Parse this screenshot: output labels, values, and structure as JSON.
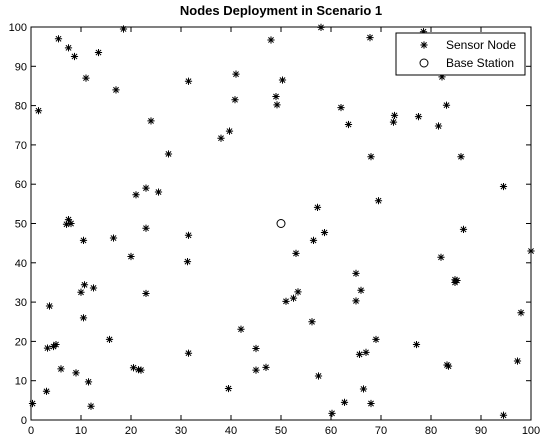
{
  "chart_data": {
    "type": "scatter",
    "title": "Nodes Deployment in Scenario 1",
    "xlabel": "",
    "ylabel": "",
    "xlim": [
      0,
      100
    ],
    "ylim": [
      0,
      100
    ],
    "x_ticks": [
      "0",
      "10",
      "20",
      "30",
      "40",
      "50",
      "60",
      "70",
      "80",
      "90",
      "100"
    ],
    "y_ticks": [
      "0",
      "10",
      "20",
      "30",
      "40",
      "50",
      "60",
      "70",
      "80",
      "90",
      "100"
    ],
    "grid": false,
    "legend_position": "top-right",
    "series": [
      {
        "name": "Sensor Node",
        "marker": "asterisk",
        "color": "#000000",
        "points": [
          [
            5.5,
            97
          ],
          [
            7.5,
            94.7
          ],
          [
            8.7,
            92.5
          ],
          [
            13.5,
            93.5
          ],
          [
            18.5,
            99.5
          ],
          [
            11,
            87
          ],
          [
            17,
            84
          ],
          [
            1.5,
            78.7
          ],
          [
            31.5,
            86.2
          ],
          [
            41,
            88
          ],
          [
            40.8,
            81.5
          ],
          [
            24,
            76.1
          ],
          [
            48,
            96.7
          ],
          [
            58,
            99.9
          ],
          [
            67.8,
            97.3
          ],
          [
            78.5,
            98.8
          ],
          [
            49,
            82.3
          ],
          [
            49.2,
            80.2
          ],
          [
            50.3,
            86.5
          ],
          [
            62,
            79.5
          ],
          [
            63.5,
            75.2
          ],
          [
            38,
            71.7
          ],
          [
            39.7,
            73.5
          ],
          [
            27.5,
            67.7
          ],
          [
            77.5,
            77.2
          ],
          [
            72.5,
            75.8
          ],
          [
            72.7,
            77.5
          ],
          [
            81.5,
            74.8
          ],
          [
            82.2,
            87.3
          ],
          [
            83.1,
            80.1
          ],
          [
            68,
            67
          ],
          [
            86,
            67
          ],
          [
            69.5,
            55.8
          ],
          [
            94.5,
            59.4
          ],
          [
            23,
            59
          ],
          [
            21,
            57.3
          ],
          [
            25.5,
            58
          ],
          [
            7.1,
            49.8
          ],
          [
            7.5,
            51
          ],
          [
            8,
            50
          ],
          [
            10.5,
            45.7
          ],
          [
            16.5,
            46.3
          ],
          [
            20,
            41.6
          ],
          [
            23,
            48.8
          ],
          [
            31.5,
            47
          ],
          [
            57.3,
            54.1
          ],
          [
            58.7,
            47.7
          ],
          [
            56.5,
            45.7
          ],
          [
            53,
            42.4
          ],
          [
            31.3,
            40.3
          ],
          [
            82,
            41.4
          ],
          [
            86.5,
            48.5
          ],
          [
            65,
            37.3
          ],
          [
            66,
            33
          ],
          [
            65,
            30.3
          ],
          [
            53.4,
            32.6
          ],
          [
            52.5,
            31
          ],
          [
            51,
            30.2
          ],
          [
            56.2,
            25
          ],
          [
            42,
            23.1
          ],
          [
            84.8,
            35.7
          ],
          [
            85.2,
            35.5
          ],
          [
            84.8,
            35
          ],
          [
            3.7,
            29
          ],
          [
            10.7,
            34.4
          ],
          [
            10,
            32.5
          ],
          [
            12.5,
            33.6
          ],
          [
            23,
            32.2
          ],
          [
            10.5,
            26
          ],
          [
            15.7,
            20.5
          ],
          [
            3.3,
            18.3
          ],
          [
            5,
            19.2
          ],
          [
            4.5,
            18.7
          ],
          [
            6,
            13
          ],
          [
            9,
            12
          ],
          [
            11.5,
            9.7
          ],
          [
            12,
            3.5
          ],
          [
            20.5,
            13.3
          ],
          [
            21.5,
            12.8
          ],
          [
            22,
            12.7
          ],
          [
            31.5,
            17
          ],
          [
            45,
            18.2
          ],
          [
            45,
            12.7
          ],
          [
            47,
            13.4
          ],
          [
            39.5,
            8
          ],
          [
            57.5,
            11.2
          ],
          [
            65.7,
            16.7
          ],
          [
            67,
            17.2
          ],
          [
            69,
            20.5
          ],
          [
            77.1,
            19.2
          ],
          [
            66.5,
            7.9
          ],
          [
            68,
            4.2
          ],
          [
            62.7,
            4.5
          ],
          [
            60.2,
            1.7
          ],
          [
            83.2,
            14
          ],
          [
            83.5,
            13.7
          ],
          [
            97.3,
            15
          ],
          [
            98,
            27.3
          ],
          [
            100,
            43
          ],
          [
            94.5,
            1.2
          ],
          [
            0.3,
            4.2
          ],
          [
            3.1,
            7.3
          ]
        ]
      },
      {
        "name": "Base Station",
        "marker": "circle",
        "color": "#000000",
        "points": [
          [
            50,
            50
          ]
        ]
      }
    ]
  }
}
